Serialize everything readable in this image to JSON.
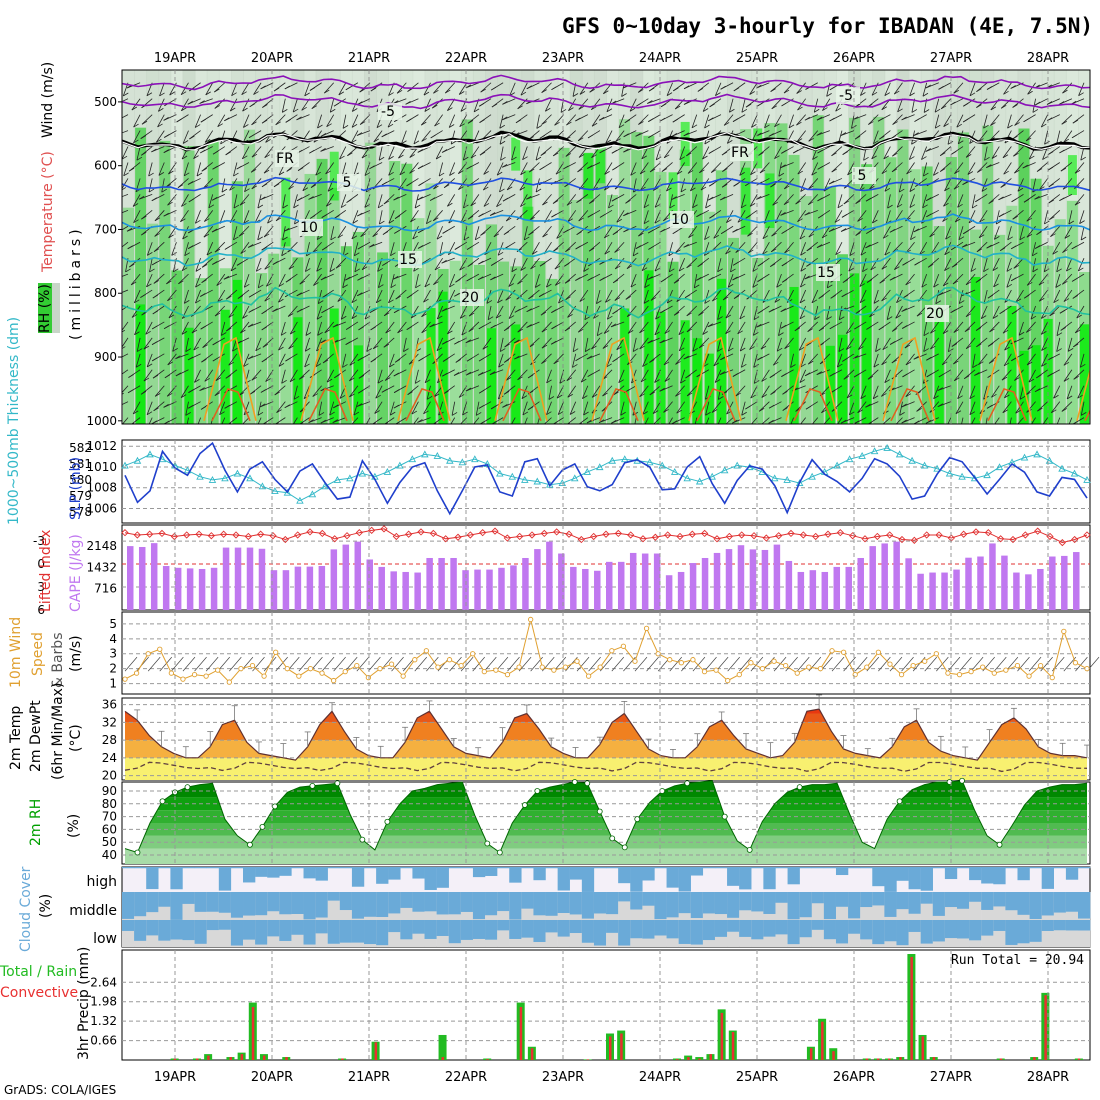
{
  "title": "GFS 0~10day 3-hourly for IBADAN (4E, 7.5N)",
  "footer": "GrADS: COLA/IGES",
  "dates": [
    "19APR",
    "20APR",
    "21APR",
    "22APR",
    "23APR",
    "24APR",
    "25APR",
    "26APR",
    "27APR",
    "28APR"
  ],
  "colors": {
    "rh_green": "#33cc33",
    "rh_bright": "#00ee00",
    "rh_light": "#e8f5e8",
    "rh_grey": "#c8d6c8",
    "slp": "#1f3fcc",
    "thickness": "#33b8c8",
    "lifted_index": "#e03030",
    "cape": "#c078f0",
    "wind_speed": "#e0a030",
    "temp_hot": "#e83810",
    "temp_warm": "#f08020",
    "temp_mild": "#f5b040",
    "temp_cool": "#f8f070",
    "rh_surface": "#00a000",
    "cloud": "#6aaad8",
    "cloud_clear": "#f4f0f8",
    "rain_total": "#22bb22",
    "rain_conv": "#e83030"
  },
  "panels": {
    "upper_air": {
      "ylabel_rh": "RH (%)",
      "ylabel_temp": "Temperature (°C)",
      "ylabel_wind": "Wind (m/s)",
      "ylabel_units": "(millibars)",
      "yticks": [
        "500",
        "600",
        "700",
        "800",
        "900",
        "1000"
      ],
      "contour_labels": [
        "-5",
        "-5",
        "FR",
        "FR",
        "5",
        "5",
        "10",
        "10",
        "15",
        "15",
        "20",
        "20"
      ]
    },
    "pressure": {
      "ylabel_thick": "1000~500mb Thickness (dm)",
      "ylabel_slp": "SLP (mb)",
      "yticks_left": [
        "582",
        "581",
        "580",
        "579",
        "578"
      ],
      "yticks_right": [
        "1012",
        "1010",
        "1008",
        "1006"
      ]
    },
    "stability": {
      "ylabel_li": "Lifted Index",
      "ylabel_cape": "CAPE (J/kg)",
      "yticks_left": [
        "-3",
        "0",
        "3",
        "6"
      ],
      "yticks_right": [
        "2148",
        "1432",
        "716"
      ]
    },
    "wind10m": {
      "ylabel1": "10m Wind",
      "ylabel2": "Speed",
      "ylabel3": "& Barbs",
      "ylabel4": "(m/s)",
      "yticks": [
        "5",
        "4",
        "3",
        "2",
        "1"
      ]
    },
    "temp2m": {
      "ylabel1": "2m Temp",
      "ylabel2": "2m DewPt",
      "ylabel3": "(6hr Min/Max)",
      "ylabel4": "(°C)",
      "yticks": [
        "36",
        "32",
        "28",
        "24",
        "20"
      ]
    },
    "rh2m": {
      "ylabel1": "2m RH",
      "ylabel2": "(%)",
      "yticks": [
        "90",
        "80",
        "70",
        "60",
        "50",
        "40"
      ]
    },
    "cloud": {
      "ylabel1": "Cloud Cover",
      "ylabel2": "(%)",
      "levels": [
        "high",
        "middle",
        "low"
      ]
    },
    "precip": {
      "ylabel_total": "Total / Rain",
      "ylabel_conv": "Convective",
      "ylabel_precip": "3hr Precip (mm)",
      "yticks": [
        "2.64",
        "1.98",
        "1.32",
        "0.66"
      ],
      "run_total": "Run Total = 20.94"
    }
  },
  "chart_data": [
    {
      "type": "line",
      "title": "1000~500mb Thickness (dm)",
      "series": [
        {
          "name": "1000~500mb Thickness (dm)",
          "values": [
            580.9,
            581.2,
            581.6,
            581.3,
            580.9,
            580.6,
            580.2,
            580.0,
            580.1,
            580.4,
            580.1,
            579.6,
            579.3,
            579.2,
            578.7,
            579.1,
            579.6,
            580.0,
            580.1,
            580.4,
            580.2,
            580.5,
            580.9,
            581.3,
            581.6,
            581.5,
            581.2,
            581.1,
            581.3,
            581.0,
            580.4,
            580.2,
            580.0,
            579.9,
            579.7,
            579.8,
            580.1,
            580.5,
            580.8,
            581.2,
            581.3,
            581.2,
            581.1,
            580.9,
            580.5,
            580.1,
            579.9,
            580.2,
            580.6,
            580.9,
            580.8,
            580.5,
            580.1,
            580.0,
            579.8,
            580.2,
            580.5,
            580.9,
            581.3,
            581.5,
            581.8,
            582.0,
            581.6,
            581.2,
            580.9,
            580.7,
            580.4,
            580.2,
            580.1,
            580.3,
            580.8,
            581.1,
            581.4,
            581.6,
            581.2,
            580.7,
            580.4,
            580.0
          ]
        }
      ]
    },
    {
      "type": "line",
      "title": "SLP (mb)",
      "series": [
        {
          "name": "SLP (mb)",
          "values": [
            1009.2,
            1006.6,
            1007.7,
            1011.5,
            1009.9,
            1009.2,
            1011.3,
            1012.3,
            1009.7,
            1007.6,
            1009.8,
            1010.5,
            1008.8,
            1007.6,
            1009.6,
            1010.3,
            1008.5,
            1006.9,
            1007.1,
            1010.6,
            1008.8,
            1006.5,
            1008.5,
            1010.0,
            1010.4,
            1007.7,
            1005.5,
            1007.7,
            1010.0,
            1010.2,
            1007.6,
            1007.2,
            1010.5,
            1010.8,
            1008.2,
            1009.7,
            1010.3,
            1008.1,
            1007.7,
            1008.3,
            1010.4,
            1010.7,
            1010.0,
            1007.8,
            1007.9,
            1010.0,
            1011.0,
            1008.4,
            1006.5,
            1008.7,
            1010.1,
            1009.8,
            1008.2,
            1005.6,
            1008.5,
            1010.7,
            1009.3,
            1008.6,
            1007.6,
            1008.9,
            1010.8,
            1010.3,
            1009.1,
            1006.9,
            1007.2,
            1009.3,
            1010.9,
            1010.5,
            1009.0,
            1007.4,
            1008.8,
            1010.3,
            1009.5,
            1007.6,
            1007.2,
            1009.0,
            1008.8,
            1007.0
          ]
        }
      ]
    },
    {
      "type": "line",
      "title": "Lifted Index",
      "series": [
        {
          "name": "Lifted Index",
          "values": [
            -4.1,
            -3.8,
            -3.9,
            -4.0,
            -3.6,
            -3.8,
            -3.9,
            -3.7,
            -3.9,
            -3.8,
            -3.6,
            -3.9,
            -3.7,
            -3.2,
            -3.8,
            -4.2,
            -4.0,
            -3.3,
            -3.7,
            -4.1,
            -4.4,
            -4.6,
            -3.6,
            -3.9,
            -4.2,
            -4.0,
            -3.3,
            -3.5,
            -3.8,
            -4.1,
            -4.3,
            -3.4,
            -3.6,
            -3.8,
            -4.0,
            -4.2,
            -3.9,
            -3.2,
            -3.6,
            -3.9,
            -4.0,
            -3.8,
            -3.3,
            -3.5,
            -3.8,
            -3.6,
            -3.9,
            -4.0,
            -3.3,
            -3.6,
            -3.8,
            -3.7,
            -3.4,
            -3.7,
            -4.0,
            -3.8,
            -3.6,
            -3.9,
            -4.1,
            -3.7,
            -3.3,
            -3.6,
            -3.8,
            -3.2,
            -3.1,
            -3.8,
            -3.8,
            -3.4,
            -3.9,
            -4.2,
            -4.1,
            -3.3,
            -3.2,
            -3.8,
            -4.3,
            -3.6,
            -2.8,
            -3.2,
            -3.8
          ]
        }
      ]
    },
    {
      "type": "bar",
      "title": "CAPE (J/kg)",
      "series": [
        {
          "name": "CAPE (J/kg)",
          "values": [
            2150,
            2120,
            2250,
            1480,
            1420,
            1400,
            1380,
            1420,
            2100,
            2100,
            2100,
            2060,
            1340,
            1340,
            1460,
            1460,
            1480,
            2040,
            2200,
            2300,
            1700,
            1450,
            1300,
            1280,
            1260,
            1750,
            1750,
            1750,
            1340,
            1360,
            1360,
            1420,
            1500,
            1750,
            2050,
            2300,
            1900,
            1450,
            1380,
            1320,
            1620,
            1620,
            1920,
            1900,
            1900,
            1170,
            1280,
            1580,
            1750,
            1920,
            2050,
            2180,
            2040,
            2020,
            2200,
            1650,
            1280,
            1340,
            1280,
            1450,
            1450,
            1750,
            2150,
            2240,
            2300,
            1740,
            1220,
            1260,
            1260,
            1360,
            1760,
            1800,
            2240,
            1830,
            1260,
            1200,
            1380,
            1800,
            1820,
            1950
          ]
        }
      ]
    },
    {
      "type": "line",
      "title": "10m Wind Speed",
      "series": [
        {
          "name": "10m Wind Speed",
          "values": [
            1.3,
            1.7,
            3.0,
            3.3,
            1.7,
            1.3,
            1.6,
            1.5,
            1.9,
            1.1,
            2.0,
            2.2,
            1.5,
            3.1,
            2.0,
            1.5,
            2.0,
            1.7,
            1.2,
            1.8,
            2.2,
            1.4,
            2.0,
            2.3,
            1.5,
            2.6,
            3.2,
            2.1,
            2.6,
            2.2,
            3.0,
            1.8,
            1.9,
            1.6,
            2.1,
            5.3,
            2.1,
            1.9,
            2.1,
            2.5,
            1.5,
            2.1,
            3.2,
            3.5,
            2.5,
            4.7,
            3.0,
            2.6,
            2.4,
            2.6,
            1.8,
            1.9,
            1.2,
            1.6,
            2.4,
            2.0,
            2.5,
            2.2,
            1.7,
            2.1,
            2.0,
            3.2,
            3.1,
            1.6,
            2.1,
            3.1,
            2.3,
            1.6,
            2.2,
            2.5,
            3.0,
            1.7,
            1.6,
            1.8,
            2.1,
            1.7,
            1.9,
            2.2,
            1.5,
            2.2,
            1.4,
            4.5,
            2.4,
            2.0
          ]
        }
      ]
    },
    {
      "type": "area",
      "title": "2m Temp",
      "series": [
        {
          "name": "2m Temp",
          "values": [
            34.5,
            32.5,
            29.0,
            26.5,
            25.0,
            24.0,
            24.0,
            26.5,
            31.5,
            32.5,
            27.5,
            25.0,
            24.5,
            24.0,
            23.5,
            26.5,
            31.5,
            34.5,
            30.0,
            26.0,
            24.5,
            24.0,
            24.0,
            27.5,
            33.0,
            34.5,
            30.5,
            26.5,
            25.0,
            24.5,
            24.0,
            27.5,
            33.0,
            34.0,
            30.5,
            26.5,
            25.0,
            24.0,
            24.0,
            27.0,
            32.0,
            34.0,
            30.0,
            26.0,
            24.5,
            24.0,
            24.0,
            26.5,
            31.0,
            32.5,
            29.0,
            26.0,
            25.0,
            24.0,
            24.5,
            27.5,
            34.5,
            35.0,
            30.0,
            26.0,
            25.0,
            24.5,
            24.0,
            26.5,
            31.0,
            32.5,
            27.5,
            25.5,
            24.5,
            24.0,
            23.5,
            27.5,
            31.5,
            33.0,
            30.5,
            26.5,
            25.0,
            24.5,
            24.5,
            24.0
          ]
        }
      ]
    },
    {
      "type": "area",
      "title": "2m RH",
      "series": [
        {
          "name": "2m RH",
          "values": [
            45,
            42,
            65,
            82,
            89,
            93,
            95,
            96,
            68,
            55,
            48,
            62,
            78,
            89,
            93,
            94,
            95,
            96,
            72,
            52,
            44,
            66,
            80,
            90,
            92,
            95,
            96,
            97,
            71,
            49,
            42,
            65,
            79,
            90,
            93,
            95,
            97,
            96,
            74,
            53,
            46,
            68,
            81,
            90,
            94,
            96,
            97,
            98,
            70,
            51,
            44,
            66,
            80,
            89,
            93,
            95,
            95,
            96,
            72,
            50,
            45,
            68,
            82,
            91,
            95,
            97,
            97,
            98,
            75,
            55,
            48,
            63,
            79,
            90,
            93,
            95,
            95,
            96
          ]
        }
      ]
    },
    {
      "type": "bar",
      "title": "3hr Precip (mm)",
      "series": [
        {
          "name": "Total / Rain",
          "values": [
            0,
            0,
            0,
            0,
            0.05,
            0,
            0.05,
            0.2,
            0,
            0.1,
            0.25,
            1.95,
            0.2,
            0,
            0.1,
            0,
            0,
            0,
            0,
            0.05,
            0,
            0,
            0.62,
            0,
            0,
            0,
            0,
            0,
            0.85,
            0,
            0,
            0,
            0.05,
            0,
            0,
            1.95,
            0.45,
            0,
            0,
            0,
            0,
            0.02,
            0,
            0.9,
            1.0,
            0,
            0,
            0,
            0,
            0.05,
            0.15,
            0.1,
            0.2,
            1.72,
            1.0,
            0,
            0,
            0,
            0,
            0,
            0,
            0.45,
            1.4,
            0.4,
            0,
            0,
            0.05,
            0.05,
            0.05,
            0.1,
            3.6,
            0.85,
            0.1,
            0,
            0,
            0,
            0,
            0,
            0.05,
            0,
            0,
            0.1,
            2.28,
            0,
            0,
            0.05
          ]
        },
        {
          "name": "Convective",
          "values": [
            0,
            0,
            0,
            0,
            0.05,
            0,
            0.05,
            0.15,
            0,
            0.1,
            0.2,
            1.8,
            0.15,
            0,
            0.1,
            0,
            0,
            0,
            0,
            0.05,
            0,
            0,
            0.6,
            0,
            0,
            0,
            0,
            0,
            0.1,
            0,
            0,
            0,
            0.03,
            0,
            0,
            1.8,
            0.4,
            0,
            0,
            0,
            0,
            0.02,
            0,
            0.8,
            0.9,
            0,
            0,
            0,
            0,
            0.03,
            0.1,
            0.05,
            0.2,
            1.6,
            0.95,
            0,
            0,
            0,
            0,
            0,
            0,
            0.4,
            1.3,
            0.3,
            0,
            0,
            0.05,
            0.05,
            0.05,
            0.1,
            3.5,
            0.8,
            0.1,
            0,
            0,
            0,
            0,
            0,
            0.05,
            0,
            0,
            0.1,
            2.2,
            0,
            0,
            0.05
          ]
        }
      ]
    }
  ]
}
